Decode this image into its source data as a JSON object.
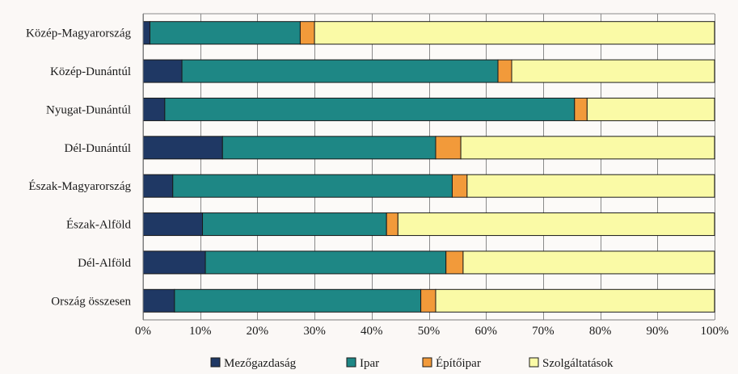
{
  "chart_data": {
    "type": "bar",
    "orientation": "horizontal",
    "stacked": true,
    "normalized": true,
    "title": "",
    "xlabel": "",
    "ylabel": "",
    "xlim": [
      0,
      100
    ],
    "grid": true,
    "legend_position": "bottom",
    "categories": [
      "Közép-Magyarország",
      "Közép-Dunántúl",
      "Nyugat-Dunántúl",
      "Dél-Dunántúl",
      "Észak-Magyarország",
      "Észak-Alföld",
      "Dél-Alföld",
      "Ország összesen"
    ],
    "x_ticks": [
      "0%",
      "10%",
      "20%",
      "30%",
      "40%",
      "50%",
      "60%",
      "70%",
      "80%",
      "90%",
      "100%"
    ],
    "series": [
      {
        "name": "Mezőgazdaság",
        "color": "#1f3864",
        "values": [
          1.2,
          6.8,
          3.8,
          13.9,
          5.2,
          10.4,
          10.9,
          5.5
        ]
      },
      {
        "name": "Ipar",
        "color": "#1e8785",
        "values": [
          26.3,
          55.3,
          71.7,
          37.3,
          48.9,
          32.2,
          42.1,
          43.1
        ]
      },
      {
        "name": "Építőipar",
        "color": "#f29a3a",
        "values": [
          2.5,
          2.4,
          2.2,
          4.4,
          2.6,
          2.0,
          3.0,
          2.6
        ]
      },
      {
        "name": "Szolgáltatások",
        "color": "#fafaa6",
        "values": [
          70.0,
          35.5,
          22.3,
          44.4,
          43.3,
          55.4,
          44.0,
          48.8
        ]
      }
    ]
  }
}
